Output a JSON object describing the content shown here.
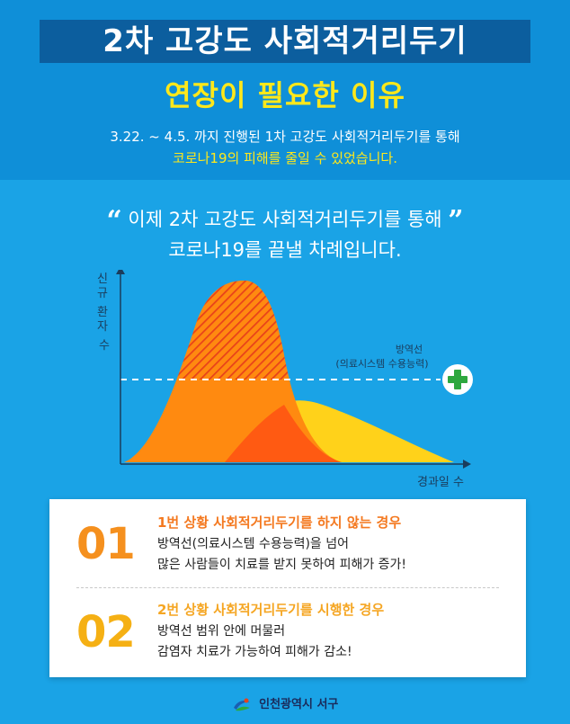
{
  "header": {
    "title": "2차 고강도 사회적거리두기",
    "subtitle": "연장이 필요한 이유",
    "intro_line1": "3.22. ~ 4.5. 까지 진행된 1차 고강도 사회적거리두기를 통해",
    "intro_line2": "코로나19의 피해를 줄일 수 있었습니다."
  },
  "quote": {
    "open": "“",
    "line1": "이제 2차 고강도 사회적거리두기를 통해",
    "close": "”",
    "line2": "코로나19를 끝낼 차례입니다."
  },
  "chart": {
    "y_label": [
      "신",
      "규",
      "환",
      "자",
      "수"
    ],
    "x_label": "경과일 수",
    "defense_line_label": "방역선",
    "defense_line_sublabel": "(의료시스템 수용능력)",
    "colors": {
      "peak": "#ff8a10",
      "hatch": "#e8421a",
      "flat": "#ffd21a",
      "overlap": "#ff5a12",
      "cross": "#2ea83e"
    }
  },
  "cases": [
    {
      "number": "01",
      "title": "1번 상황 사회적거리두기를 하지 않는 경우",
      "desc_line1": "방역선(의료시스템 수용능력)을 넘어",
      "desc_line2": "많은 사람들이 치료를 받지 못하여 피해가 증가!"
    },
    {
      "number": "02",
      "title": "2번 상황 사회적거리두기를 시행한 경우",
      "desc_line1": "방역선 범위 안에 머물러",
      "desc_line2": "감염자 치료가 가능하여 피해가 감소!"
    }
  ],
  "footer": {
    "org_name": "인천광역시 서구"
  }
}
